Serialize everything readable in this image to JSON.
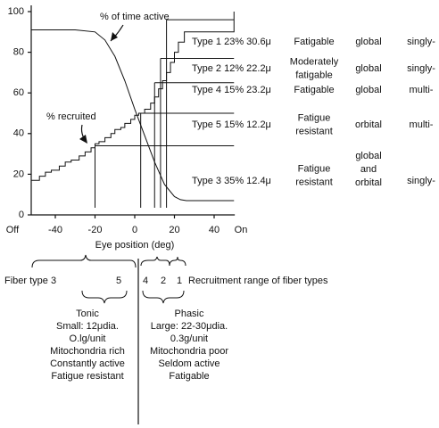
{
  "chart_data": {
    "type": "line",
    "x_label": "Eye position (deg)",
    "x_end_labels": [
      "Off",
      "On"
    ],
    "xlim": [
      -52,
      54
    ],
    "ylim": [
      0,
      100
    ],
    "xticks": [
      -40,
      -20,
      0,
      20,
      40
    ],
    "yticks": [
      0,
      20,
      40,
      60,
      80,
      100
    ],
    "series": [
      {
        "name": "% of time active",
        "color": "#111111",
        "step": false,
        "x": [
          -52,
          -30,
          -20,
          -15,
          -10,
          -5,
          0,
          5,
          10,
          15,
          20,
          23,
          26,
          30,
          40,
          50
        ],
        "values": [
          91,
          91,
          90,
          86,
          78,
          66,
          52,
          39,
          26,
          15,
          9,
          7.5,
          7,
          7,
          7,
          7
        ]
      },
      {
        "name": "% recruited",
        "color": "#111111",
        "step": true,
        "x": [
          -52,
          -48,
          -45,
          -42,
          -38,
          -35,
          -32,
          -28,
          -25,
          -22,
          -20,
          -18,
          -15,
          -12,
          -10,
          -7,
          -5,
          -2,
          0,
          2,
          5,
          8,
          10,
          12,
          14,
          16,
          18,
          20,
          22,
          25,
          50
        ],
        "values": [
          17,
          19,
          21,
          22,
          24,
          26,
          27,
          29,
          31,
          33,
          35,
          36,
          38,
          40,
          42,
          43,
          45,
          47,
          49,
          50,
          52,
          55,
          58,
          62,
          66,
          70,
          75,
          80,
          85,
          90,
          100
        ]
      }
    ],
    "thresholds": [
      {
        "x": -20,
        "y": 34
      },
      {
        "x": 3,
        "y": 50
      },
      {
        "x": 10,
        "y": 65
      },
      {
        "x": 13,
        "y": 77
      },
      {
        "x": 16,
        "y": 96
      }
    ],
    "fiber_types": [
      {
        "label": "Type 1 23% 30.6μ",
        "fatigue": [
          "Fatigable"
        ],
        "orbit": [
          "global"
        ],
        "innervation": "singly-"
      },
      {
        "label": "Type 2 12% 22.2μ",
        "fatigue": [
          "Moderately",
          "fatigable"
        ],
        "orbit": [
          "global"
        ],
        "innervation": "singly-"
      },
      {
        "label": "Type 4 15% 23.2μ",
        "fatigue": [
          "Fatigable"
        ],
        "orbit": [
          "global"
        ],
        "innervation": "multi-"
      },
      {
        "label": "Type 5 15% 12.2μ",
        "fatigue": [
          "Fatigue",
          "resistant"
        ],
        "orbit": [
          "orbital"
        ],
        "innervation": "multi-"
      },
      {
        "label": "Type 3 35% 12.4μ",
        "fatigue": [
          "Fatigue",
          "resistant"
        ],
        "orbit": [
          "global",
          "and",
          "orbital"
        ],
        "innervation": "singly-"
      }
    ]
  },
  "recruitment": {
    "fiber_type_label": "Fiber type 3",
    "order": [
      "5",
      "4",
      "2",
      "1"
    ],
    "caption": "Recruitment range of fiber types",
    "tonic": [
      "Tonic",
      "Small: 12μdia.",
      "O.lg/unit",
      "Mitochondria rich",
      "Constantly active",
      "Fatigue resistant"
    ],
    "phasic": [
      "Phasic",
      "Large: 22-30μdia.",
      "0.3g/unit",
      "Mitochondria poor",
      "Seldom active",
      "Fatigable"
    ]
  }
}
